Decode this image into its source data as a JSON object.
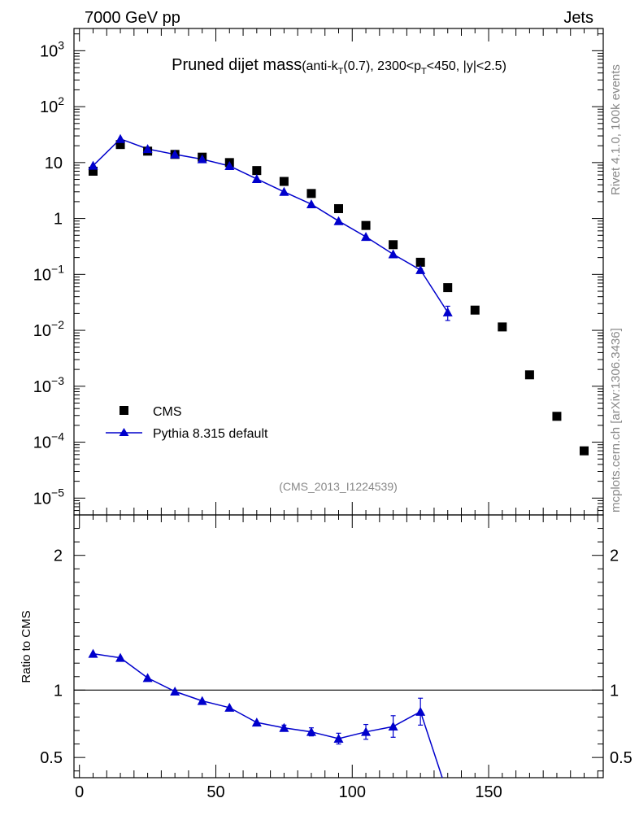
{
  "header": {
    "left_label": "7000 GeV pp",
    "right_label": "Jets"
  },
  "side_labels": {
    "rivet": "Rivet 4.1.0,  100k events",
    "source": "mcplots.cern.ch [arXiv:1306.3436]"
  },
  "chart_data": [
    {
      "type": "scatter",
      "title": "Pruned dijet mass",
      "subtitle": "(anti-kT(0.7), 2300<pT<450, |y|<2.5)",
      "subtitle_parts": {
        "a": "(anti-k",
        "a_sub": "T",
        "b": "(0.7), 2300<p",
        "b_sub": "T",
        "c": "<450, |y|<2.5)"
      },
      "analysis_label": "(CMS_2013_I1224539)",
      "yscale": "log",
      "ylim": [
        5e-06,
        2500
      ],
      "xlim": [
        -2,
        192
      ],
      "y_tick_labels": [
        {
          "value": 1000,
          "base": "10",
          "exp": "3"
        },
        {
          "value": 100,
          "base": "10",
          "exp": "2"
        },
        {
          "value": 10,
          "base": "10",
          "exp": ""
        },
        {
          "value": 1,
          "base": "1",
          "exp": ""
        },
        {
          "value": 0.1,
          "base": "10",
          "exp": "−1"
        },
        {
          "value": 0.01,
          "base": "10",
          "exp": "−2"
        },
        {
          "value": 0.001,
          "base": "10",
          "exp": "−3"
        },
        {
          "value": 0.0001,
          "base": "10",
          "exp": "−4"
        },
        {
          "value": 1e-05,
          "base": "10",
          "exp": "−5"
        }
      ],
      "legend": {
        "placement": "bottom-left",
        "entries": [
          "CMS",
          "Pythia 8.315 default"
        ]
      },
      "series": [
        {
          "name": "CMS",
          "marker": "square",
          "color": "#000000",
          "x": [
            5,
            15,
            25,
            35,
            45,
            55,
            65,
            75,
            85,
            95,
            105,
            115,
            125,
            135,
            145,
            155,
            165,
            175,
            185
          ],
          "y": [
            7.0,
            21.0,
            16.0,
            14.0,
            12.5,
            10.0,
            7.2,
            4.6,
            2.8,
            1.5,
            0.75,
            0.34,
            0.165,
            0.058,
            0.023,
            0.0115,
            0.0016,
            0.00029,
            7e-05
          ]
        },
        {
          "name": "Pythia 8.315 default",
          "marker": "triangle",
          "color": "#0000cc",
          "x": [
            5,
            15,
            25,
            35,
            45,
            55,
            65,
            75,
            85,
            95,
            105,
            115,
            125,
            135
          ],
          "y": [
            8.8,
            26.5,
            17.5,
            14.0,
            11.5,
            8.7,
            5.1,
            3.0,
            1.8,
            0.9,
            0.47,
            0.23,
            0.12,
            0.021
          ],
          "err": [
            0,
            0,
            0,
            0,
            0,
            0,
            0,
            0,
            0,
            0,
            0,
            0,
            0.006,
            0.006
          ]
        }
      ]
    },
    {
      "type": "line",
      "ylabel": "Ratio to CMS",
      "ylim": [
        0.35,
        2.3
      ],
      "xlim": [
        -2,
        192
      ],
      "y_ticks": [
        "0.5",
        "1",
        "2"
      ],
      "x_ticks": [
        "0",
        "50",
        "100",
        "150"
      ],
      "reference_line": 1,
      "series": [
        {
          "name": "Pythia 8.315 default",
          "color": "#0000cc",
          "x": [
            5,
            15,
            25,
            35,
            45,
            55,
            65,
            75,
            85,
            95,
            105,
            115,
            125
          ],
          "y": [
            1.27,
            1.24,
            1.09,
            0.99,
            0.92,
            0.87,
            0.76,
            0.72,
            0.69,
            0.64,
            0.69,
            0.73,
            0.84
          ],
          "err": [
            0,
            0,
            0,
            0,
            0,
            0,
            0,
            0.02,
            0.03,
            0.04,
            0.055,
            0.08,
            0.1
          ],
          "tail_to": [
            133,
            0.35
          ]
        }
      ]
    }
  ]
}
